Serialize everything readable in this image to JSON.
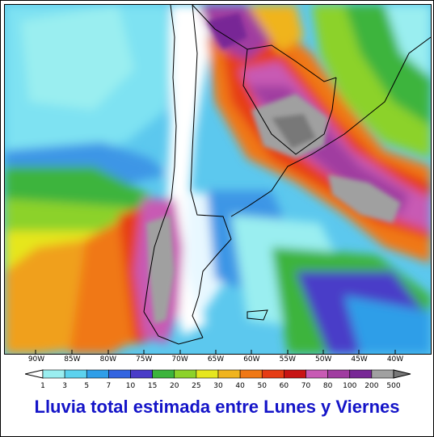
{
  "title": "Lluvia total estimada entre Lunes y Viernes",
  "longitude_labels": [
    "90W",
    "85W",
    "80W",
    "75W",
    "70W",
    "65W",
    "60W",
    "55W",
    "50W",
    "45W",
    "40W"
  ],
  "legend": {
    "values": [
      "1",
      "3",
      "5",
      "7",
      "10",
      "15",
      "20",
      "25",
      "30",
      "40",
      "50",
      "60",
      "70",
      "80",
      "100",
      "200",
      "500"
    ],
    "colors": [
      "#9aeef0",
      "#5cd2ee",
      "#2f9ee8",
      "#3264e0",
      "#4a3cc8",
      "#3cb43c",
      "#8cd22a",
      "#e6e61e",
      "#f0b41e",
      "#f07814",
      "#e63c14",
      "#c81414",
      "#c85ab4",
      "#a03ca0",
      "#782896",
      "#a0a0a0",
      "#787878"
    ]
  }
}
